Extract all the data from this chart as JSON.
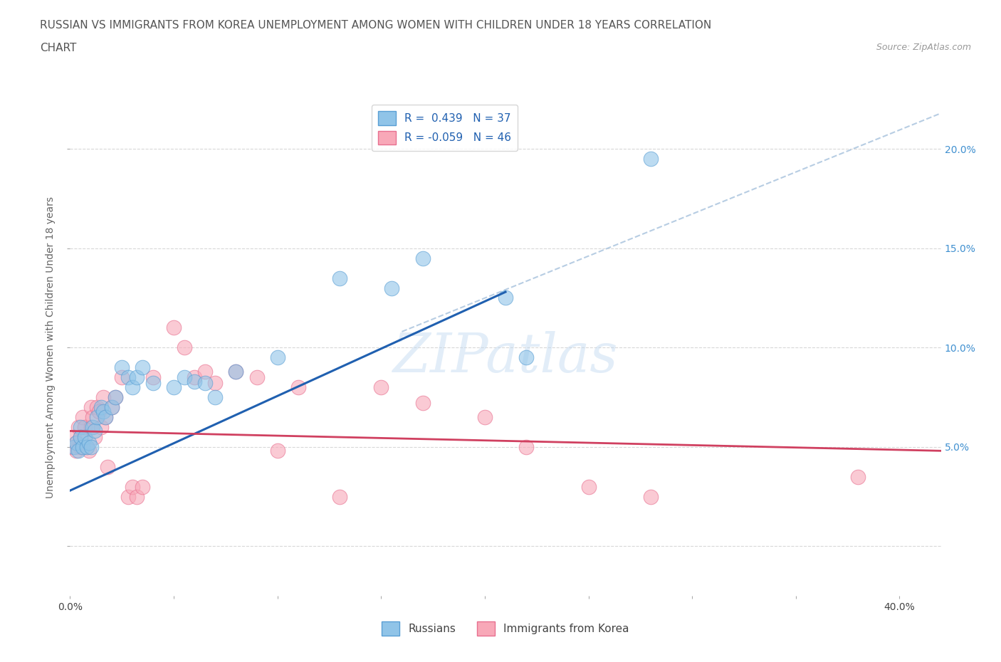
{
  "title_line1": "RUSSIAN VS IMMIGRANTS FROM KOREA UNEMPLOYMENT AMONG WOMEN WITH CHILDREN UNDER 18 YEARS CORRELATION",
  "title_line2": "CHART",
  "source": "Source: ZipAtlas.com",
  "ylabel": "Unemployment Among Women with Children Under 18 years",
  "xlim": [
    0.0,
    0.42
  ],
  "ylim": [
    -0.025,
    0.225
  ],
  "xticks": [
    0.0,
    0.05,
    0.1,
    0.15,
    0.2,
    0.25,
    0.3,
    0.35,
    0.4
  ],
  "yticks": [
    0.0,
    0.05,
    0.1,
    0.15,
    0.2
  ],
  "russian_color": "#90c4e8",
  "russian_edge": "#5a9fd4",
  "korean_color": "#f8a8b8",
  "korean_edge": "#e87090",
  "blue_line_color": "#2060b0",
  "pink_line_color": "#d04060",
  "dash_line_color": "#b0c8e0",
  "R_russian": 0.439,
  "N_russian": 37,
  "R_korean": -0.059,
  "N_korean": 46,
  "legend_label_russian": "Russians",
  "legend_label_korean": "Immigrants from Korea",
  "watermark_text": "ZIPatlas",
  "right_tick_color": "#4090d0",
  "grid_color": "#d8d8d8",
  "bg_color": "#ffffff",
  "title_color": "#555555",
  "source_color": "#999999",
  "ylabel_color": "#666666",
  "title_fontsize": 11,
  "tick_fontsize": 10,
  "ylabel_fontsize": 10,
  "russian_x": [
    0.002,
    0.003,
    0.004,
    0.005,
    0.005,
    0.006,
    0.007,
    0.008,
    0.009,
    0.01,
    0.011,
    0.012,
    0.013,
    0.015,
    0.016,
    0.017,
    0.02,
    0.022,
    0.025,
    0.028,
    0.03,
    0.032,
    0.035,
    0.04,
    0.05,
    0.055,
    0.06,
    0.065,
    0.07,
    0.08,
    0.1,
    0.13,
    0.155,
    0.17,
    0.21,
    0.22,
    0.28
  ],
  "russian_y": [
    0.05,
    0.052,
    0.048,
    0.06,
    0.055,
    0.05,
    0.055,
    0.05,
    0.052,
    0.05,
    0.06,
    0.058,
    0.065,
    0.07,
    0.068,
    0.065,
    0.07,
    0.075,
    0.09,
    0.085,
    0.08,
    0.085,
    0.09,
    0.082,
    0.08,
    0.085,
    0.083,
    0.082,
    0.075,
    0.088,
    0.095,
    0.135,
    0.13,
    0.145,
    0.125,
    0.095,
    0.195
  ],
  "korean_x": [
    0.001,
    0.002,
    0.003,
    0.003,
    0.004,
    0.005,
    0.005,
    0.006,
    0.007,
    0.008,
    0.009,
    0.01,
    0.01,
    0.011,
    0.012,
    0.013,
    0.014,
    0.015,
    0.016,
    0.017,
    0.018,
    0.02,
    0.022,
    0.025,
    0.028,
    0.03,
    0.032,
    0.035,
    0.04,
    0.05,
    0.055,
    0.06,
    0.065,
    0.07,
    0.08,
    0.09,
    0.1,
    0.11,
    0.13,
    0.15,
    0.17,
    0.2,
    0.22,
    0.25,
    0.28,
    0.38
  ],
  "korean_y": [
    0.05,
    0.055,
    0.052,
    0.048,
    0.06,
    0.05,
    0.055,
    0.065,
    0.06,
    0.05,
    0.048,
    0.06,
    0.07,
    0.065,
    0.055,
    0.07,
    0.068,
    0.06,
    0.075,
    0.065,
    0.04,
    0.07,
    0.075,
    0.085,
    0.025,
    0.03,
    0.025,
    0.03,
    0.085,
    0.11,
    0.1,
    0.085,
    0.088,
    0.082,
    0.088,
    0.085,
    0.048,
    0.08,
    0.025,
    0.08,
    0.072,
    0.065,
    0.05,
    0.03,
    0.025,
    0.035
  ],
  "blue_line_x0": 0.0,
  "blue_line_y0": 0.028,
  "blue_line_x1": 0.21,
  "blue_line_y1": 0.128,
  "dash_line_x0": 0.16,
  "dash_line_y0": 0.108,
  "dash_line_x1": 0.42,
  "dash_line_y1": 0.218,
  "pink_line_x0": 0.0,
  "pink_line_y0": 0.058,
  "pink_line_x1": 0.42,
  "pink_line_y1": 0.048
}
